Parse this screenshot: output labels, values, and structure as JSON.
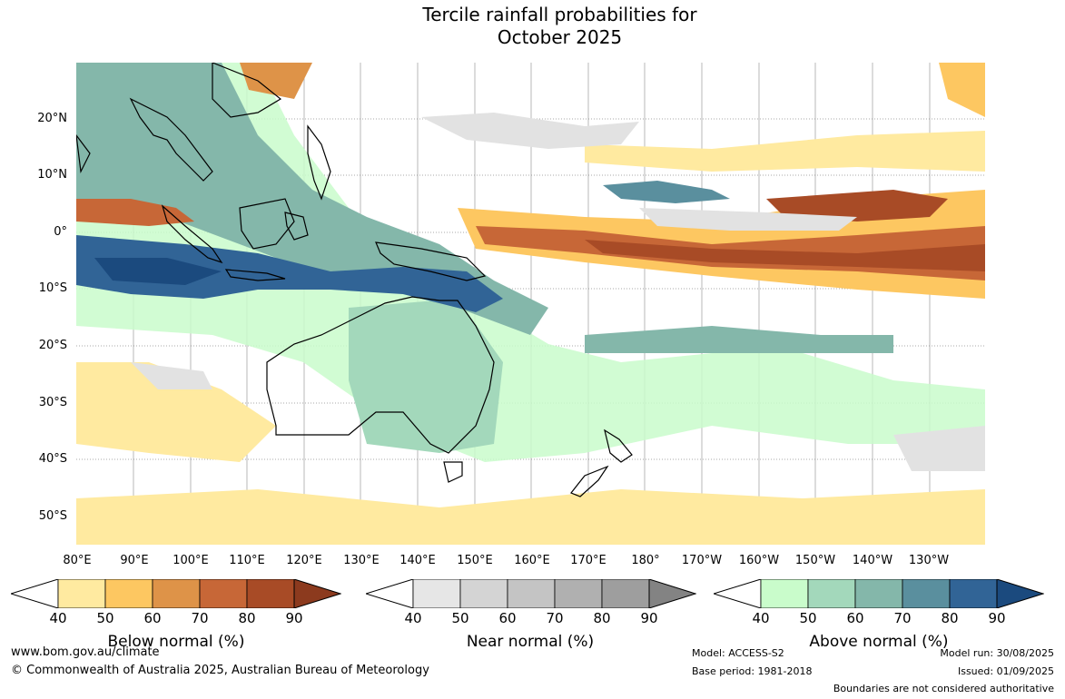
{
  "title": {
    "line1": "Tercile rainfall probabilities for",
    "line2": "October 2025"
  },
  "map": {
    "lat_labels": [
      "20°N",
      "10°N",
      "0°",
      "10°S",
      "20°S",
      "30°S",
      "40°S",
      "50°S"
    ],
    "lon_labels": [
      "80°E",
      "90°E",
      "100°E",
      "110°E",
      "120°E",
      "130°E",
      "140°E",
      "150°E",
      "160°E",
      "170°E",
      "180°",
      "170°W",
      "160°W",
      "150°W",
      "140°W",
      "130°W"
    ]
  },
  "colorbars": [
    {
      "title": "Below normal (%)",
      "ticks": [
        "40",
        "50",
        "60",
        "70",
        "80",
        "90"
      ],
      "colors": [
        "#ffeaa0",
        "#fdc761",
        "#de9348",
        "#c76737",
        "#a84b26",
        "#8c3a1e"
      ]
    },
    {
      "title": "Near normal (%)",
      "ticks": [
        "40",
        "50",
        "60",
        "70",
        "80",
        "90"
      ],
      "colors": [
        "#e6e6e6",
        "#d4d4d4",
        "#c4c4c4",
        "#b0b0b0",
        "#9e9e9e",
        "#838383"
      ]
    },
    {
      "title": "Above normal (%)",
      "ticks": [
        "40",
        "50",
        "60",
        "70",
        "80",
        "90"
      ],
      "colors": [
        "#c9fccb",
        "#a3d8bb",
        "#84b7aa",
        "#5a8f9e",
        "#316496",
        "#1b4a7e"
      ]
    }
  ],
  "footer": {
    "website": "www.bom.gov.au/climate",
    "copyright": "© Commonwealth of Australia 2025, Australian Bureau of Meteorology",
    "model": "Model: ACCESS-S2",
    "base_period": "Base period: 1981-2018",
    "model_run": "Model run: 30/08/2025",
    "issued": "Issued: 01/09/2025",
    "disclaimer": "Boundaries are not considered authoritative"
  }
}
